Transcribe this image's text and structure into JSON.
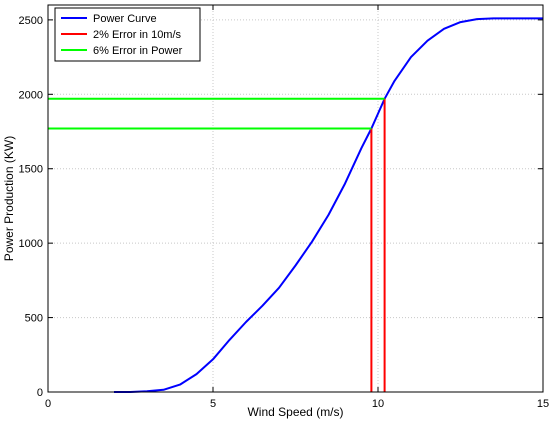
{
  "chart_data": {
    "type": "line",
    "xlabel": "Wind Speed (m/s)",
    "ylabel": "Power Production (KW)",
    "xlim": [
      0,
      15
    ],
    "ylim": [
      0,
      2600
    ],
    "x_ticks": [
      0,
      5,
      10,
      15
    ],
    "y_ticks": [
      0,
      500,
      1000,
      1500,
      2000,
      2500
    ],
    "grid": true,
    "legend_position": "top-left",
    "series": [
      {
        "name": "Power Curve",
        "color": "#0000ff",
        "x": [
          2.0,
          2.5,
          3.0,
          3.5,
          4.0,
          4.5,
          5.0,
          5.5,
          6.0,
          6.5,
          7.0,
          7.5,
          8.0,
          8.5,
          9.0,
          9.5,
          9.8,
          10.2,
          10.5,
          11.0,
          11.5,
          12.0,
          12.5,
          13.0,
          13.5,
          14.0,
          15.0
        ],
        "y": [
          0,
          0,
          5,
          15,
          50,
          120,
          220,
          350,
          470,
          580,
          700,
          850,
          1010,
          1190,
          1400,
          1640,
          1770,
          1970,
          2090,
          2250,
          2360,
          2440,
          2485,
          2505,
          2510,
          2510,
          2510
        ]
      },
      {
        "name": "2% Error in 10m/s",
        "color": "#ff0000",
        "segments": [
          {
            "x": [
              9.8,
              9.8
            ],
            "y": [
              0,
              1770
            ]
          },
          {
            "x": [
              10.2,
              10.2
            ],
            "y": [
              0,
              1970
            ]
          }
        ]
      },
      {
        "name": "6% Error in Power",
        "color": "#00ff00",
        "segments": [
          {
            "x": [
              0,
              9.8
            ],
            "y": [
              1770,
              1770
            ]
          },
          {
            "x": [
              0,
              10.2
            ],
            "y": [
              1970,
              1970
            ]
          }
        ]
      }
    ]
  }
}
